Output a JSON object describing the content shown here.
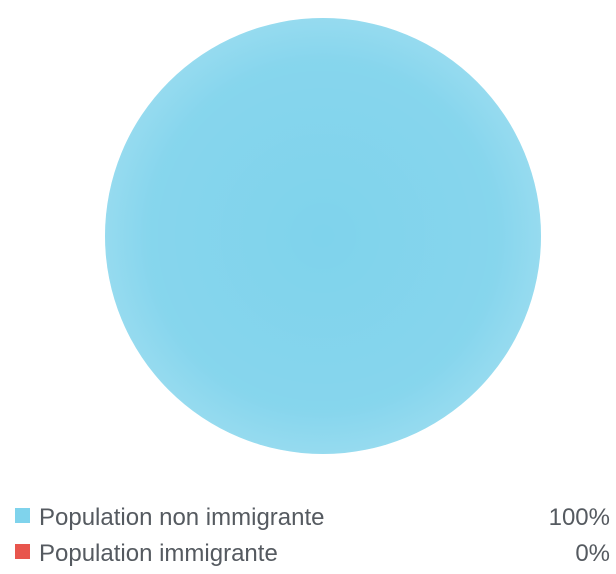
{
  "chart_data": {
    "type": "pie",
    "series": [
      {
        "name": "Population non immigrante",
        "value": 100,
        "value_label": "100%",
        "color": "#7fd3ec"
      },
      {
        "name": "Population immigrante",
        "value": 0,
        "value_label": "0%",
        "color": "#e8554d"
      }
    ],
    "legend_position": "bottom"
  }
}
